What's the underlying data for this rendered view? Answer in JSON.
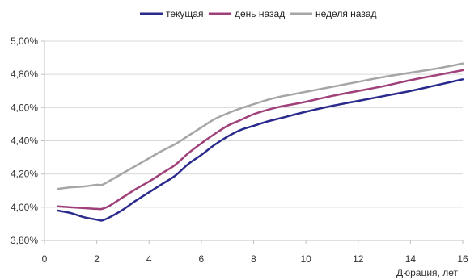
{
  "chart_data": {
    "type": "line",
    "title": "",
    "xlabel": "Дюрация, лет",
    "ylabel": "",
    "xlim": [
      0,
      16
    ],
    "ylim": [
      3.8,
      5.0
    ],
    "x_ticks": [
      0,
      2,
      4,
      6,
      8,
      10,
      12,
      14,
      16
    ],
    "x_tick_labels": [
      "0",
      "2",
      "4",
      "6",
      "8",
      "10",
      "12",
      "14",
      "16"
    ],
    "y_ticks": [
      3.8,
      4.0,
      4.2,
      4.4,
      4.6,
      4.8,
      5.0
    ],
    "y_tick_labels": [
      "3,80%",
      "4,00%",
      "4,20%",
      "4,40%",
      "4,60%",
      "4,80%",
      "5,00%"
    ],
    "grid": "horizontal",
    "legend_position": "top",
    "series": [
      {
        "name": "текущая",
        "color": "#2a2a8c",
        "x": [
          0.5,
          1,
          1.5,
          2,
          2.2,
          2.5,
          3,
          3.5,
          4,
          4.5,
          5,
          5.5,
          6,
          6.5,
          7,
          7.5,
          8,
          8.5,
          9,
          9.5,
          10,
          11,
          12,
          13,
          14,
          15,
          16
        ],
        "y": [
          3.98,
          3.965,
          3.94,
          3.925,
          3.92,
          3.94,
          3.985,
          4.04,
          4.09,
          4.14,
          4.19,
          4.26,
          4.315,
          4.375,
          4.425,
          4.465,
          4.49,
          4.515,
          4.535,
          4.555,
          4.575,
          4.61,
          4.64,
          4.67,
          4.7,
          4.735,
          4.77
        ]
      },
      {
        "name": "день назад",
        "color": "#a0407a",
        "x": [
          0.5,
          1,
          1.5,
          2,
          2.2,
          2.5,
          3,
          3.5,
          4,
          4.5,
          5,
          5.5,
          6,
          6.5,
          7,
          7.5,
          8,
          8.5,
          9,
          9.5,
          10,
          11,
          12,
          13,
          14,
          15,
          16
        ],
        "y": [
          4.005,
          4.0,
          3.995,
          3.99,
          3.99,
          4.01,
          4.06,
          4.11,
          4.155,
          4.205,
          4.255,
          4.325,
          4.385,
          4.44,
          4.49,
          4.525,
          4.56,
          4.585,
          4.605,
          4.62,
          4.635,
          4.67,
          4.7,
          4.73,
          4.765,
          4.795,
          4.825
        ]
      },
      {
        "name": "неделя назад",
        "color": "#a6a6a6",
        "x": [
          0.5,
          1,
          1.5,
          2,
          2.2,
          2.5,
          3,
          3.5,
          4,
          4.5,
          5,
          5.5,
          6,
          6.5,
          7,
          7.5,
          8,
          8.5,
          9,
          9.5,
          10,
          11,
          12,
          13,
          14,
          15,
          16
        ],
        "y": [
          4.11,
          4.12,
          4.125,
          4.135,
          4.135,
          4.16,
          4.205,
          4.25,
          4.295,
          4.34,
          4.38,
          4.43,
          4.48,
          4.53,
          4.565,
          4.595,
          4.62,
          4.645,
          4.665,
          4.68,
          4.695,
          4.725,
          4.755,
          4.785,
          4.81,
          4.835,
          4.865
        ]
      }
    ]
  }
}
